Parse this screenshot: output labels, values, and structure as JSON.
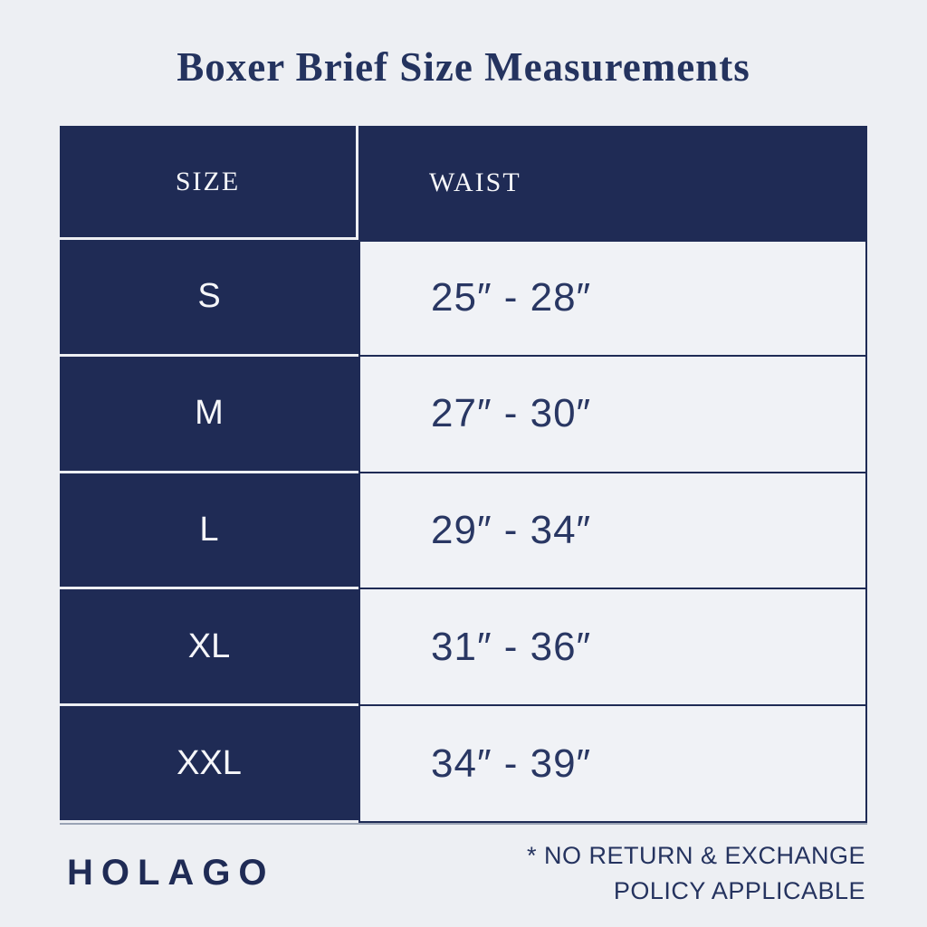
{
  "colors": {
    "navy": "#1f2b55",
    "page_background": "#edeff3",
    "cell_light": "#f0f2f6",
    "title_text": "#24335f"
  },
  "title": "Boxer Brief Size Measurements",
  "table": {
    "headers": [
      "SIZE",
      "WAIST"
    ],
    "rows": [
      {
        "size": "S",
        "waist": "25″ - 28″"
      },
      {
        "size": "M",
        "waist": "27″ - 30″"
      },
      {
        "size": "L",
        "waist": "29″ - 34″"
      },
      {
        "size": "XL",
        "waist": "31″ - 36″"
      },
      {
        "size": "XXL",
        "waist": "34″ - 39″"
      }
    ]
  },
  "footer": {
    "brand": "HOLAGO",
    "note_line1": "* NO RETURN & EXCHANGE",
    "note_line2": "POLICY APPLICABLE"
  }
}
